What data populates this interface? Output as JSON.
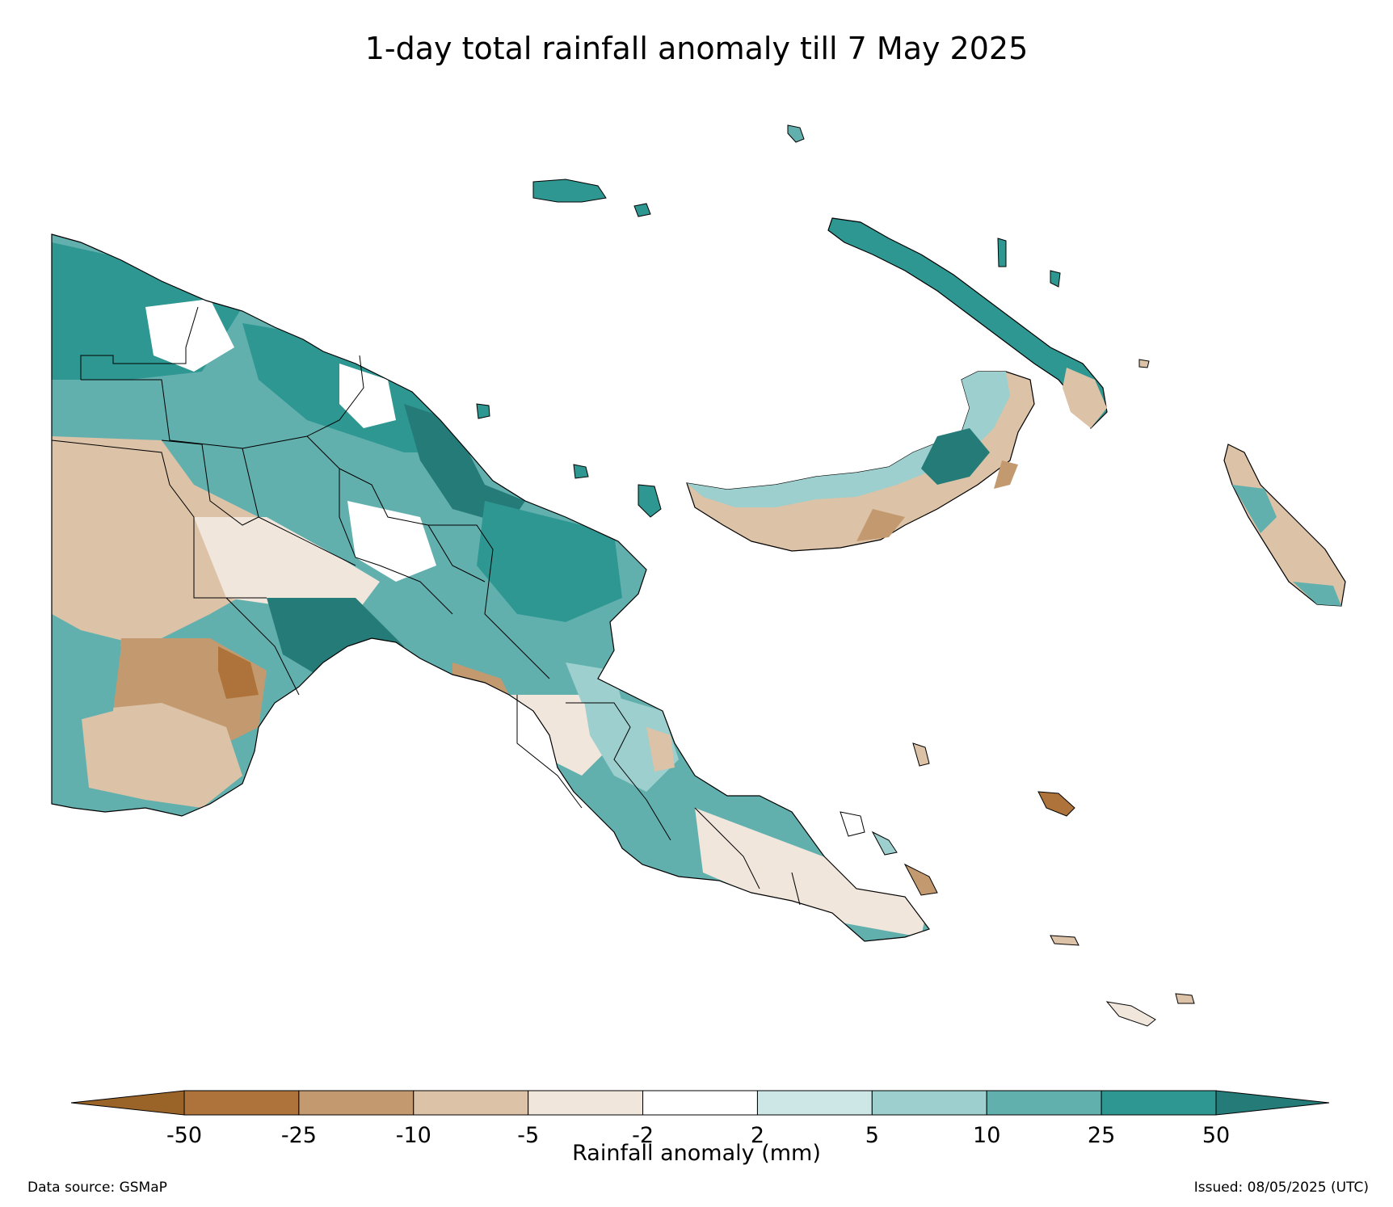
{
  "title": "1-day total rainfall anomaly till 7 May 2025",
  "colorbar": {
    "label": "Rainfall anomaly (mm)",
    "ticks": [
      "-50",
      "-25",
      "-10",
      "-5",
      "-2",
      "2",
      "5",
      "10",
      "25",
      "50"
    ],
    "colors": {
      "below_min": "#9a6428",
      "bins": [
        "#ae733a",
        "#c39a6f",
        "#dcc2a7",
        "#f1e6dc",
        "#ffffff",
        "#cde6e6",
        "#9ccfcd",
        "#62b0ae",
        "#2e9792"
      ],
      "above_max": "#257b78"
    }
  },
  "footer": {
    "source": "Data source: GSMaP",
    "issued": "Issued: 08/05/2025 (UTC)"
  },
  "map": {
    "region": "Papua New Guinea",
    "variable": "1-day total rainfall anomaly",
    "units": "mm"
  }
}
